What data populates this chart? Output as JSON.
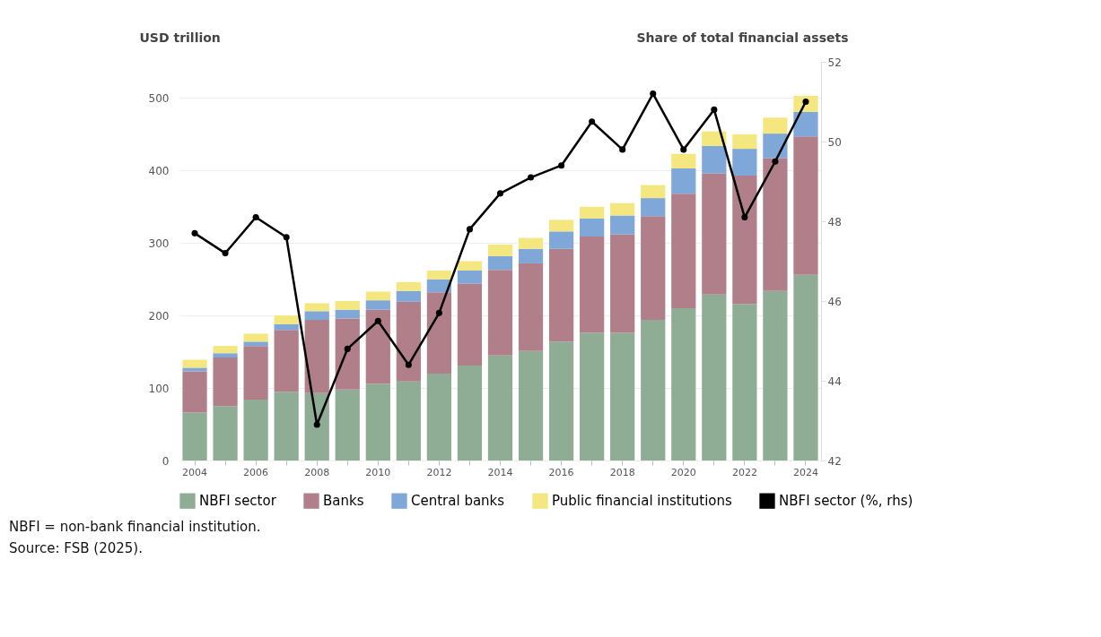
{
  "chart_data": {
    "type": "bar",
    "stacked": true,
    "ylabel": "USD trillion",
    "y2label": "Share of total financial assets",
    "categories": [
      "2004",
      null,
      "2006",
      null,
      "2008",
      null,
      "2010",
      null,
      "2012",
      null,
      "2014",
      null,
      "2016",
      null,
      "2018",
      null,
      "2020",
      null,
      "2022",
      null,
      "2024"
    ],
    "series": [
      {
        "name": "NBFI sector",
        "color": "#8fac94",
        "values": [
          66,
          75,
          84,
          95,
          93,
          98,
          106,
          109,
          120,
          131,
          145,
          151,
          164,
          176,
          176,
          194,
          210,
          229,
          216,
          234,
          256
        ]
      },
      {
        "name": "Banks",
        "color": "#b07f8a",
        "values": [
          57,
          67,
          74,
          85,
          101,
          98,
          102,
          110,
          112,
          113,
          118,
          121,
          128,
          133,
          136,
          143,
          158,
          167,
          177,
          183,
          191
        ]
      },
      {
        "name": "Central banks",
        "color": "#7fa7d8",
        "values": [
          5,
          6,
          6,
          8,
          12,
          12,
          13,
          15,
          18,
          18,
          19,
          20,
          24,
          25,
          26,
          25,
          35,
          38,
          37,
          34,
          34
        ]
      },
      {
        "name": "Public financial institutions",
        "color": "#f5e77f",
        "values": [
          11,
          10,
          11,
          12,
          11,
          12,
          12,
          12,
          12,
          13,
          16,
          15,
          16,
          16,
          17,
          18,
          20,
          20,
          20,
          22,
          22
        ]
      },
      {
        "name": "NBFI sector (%, rhs)",
        "type": "line",
        "axis": "y2",
        "color": "#000000",
        "marker": "circle",
        "values": [
          47.7,
          47.2,
          48.1,
          47.6,
          42.9,
          44.8,
          45.5,
          44.4,
          45.7,
          47.8,
          48.7,
          49.1,
          49.4,
          50.5,
          49.8,
          51.2,
          49.8,
          50.8,
          48.1,
          49.5,
          51.0
        ]
      }
    ],
    "ylim": [
      0,
      550
    ],
    "yticks": [
      0,
      100,
      200,
      300,
      400,
      500
    ],
    "y2lim": [
      42,
      52
    ],
    "y2ticks": [
      42,
      44,
      46,
      48,
      50,
      52
    ],
    "grid": "y",
    "legend": "bottom",
    "annotations": [
      "NBFI = non-bank financial institution.",
      "Source: FSB (2025)."
    ]
  }
}
